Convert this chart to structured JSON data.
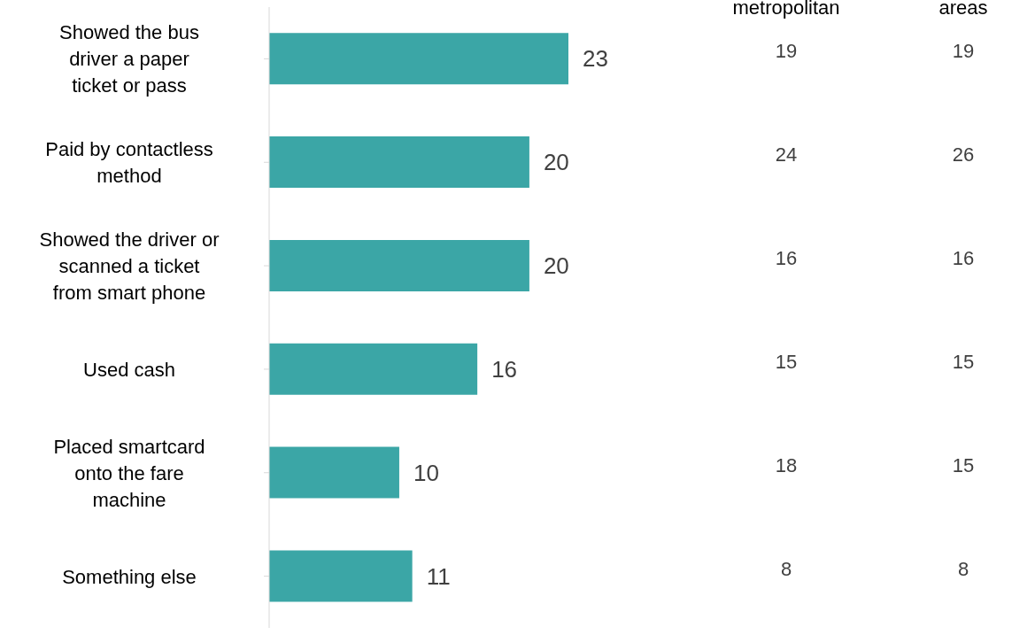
{
  "chart_data": [
    {
      "type": "bar",
      "orientation": "horizontal",
      "data_labels": true,
      "color": "#3ba6a6",
      "categories": [
        "Showed the bus driver a paper ticket or pass",
        "Paid by contactless method",
        "Showed the driver or scanned a ticket from smart phone",
        "Used cash",
        "Placed smartcard onto the fare machine",
        "Something else"
      ],
      "values": [
        23,
        20,
        20,
        16,
        10,
        11
      ]
    },
    {
      "type": "other",
      "title": "metropolitan",
      "data_labels": true,
      "values": [
        19,
        24,
        16,
        15,
        18,
        8
      ]
    },
    {
      "type": "other",
      "title": "areas",
      "data_labels": true,
      "values": [
        19,
        26,
        16,
        15,
        15,
        8
      ]
    }
  ]
}
